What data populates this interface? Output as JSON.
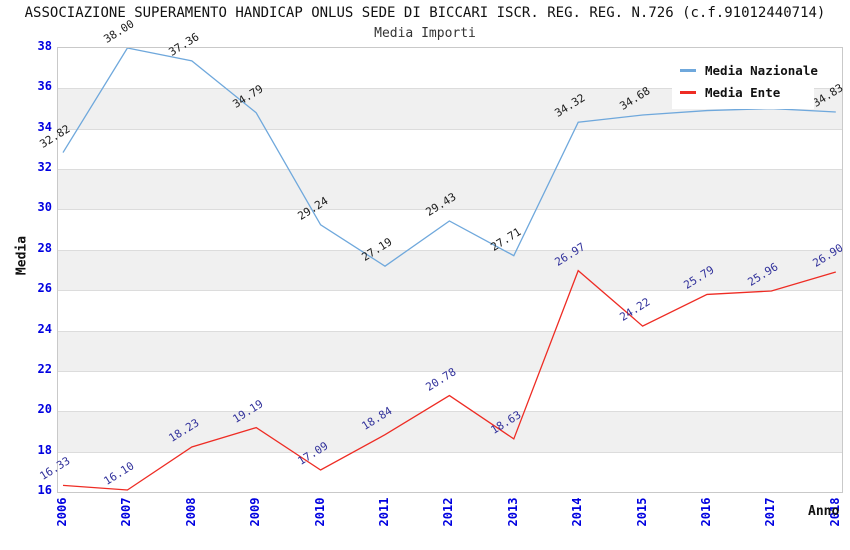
{
  "header": {
    "title": "ASSOCIAZIONE SUPERAMENTO HANDICAP ONLUS SEDE DI BICCARI ISCR. REG. REG. N.726 (c.f.91012440714)",
    "subtitle": "Media Importi"
  },
  "axes": {
    "x_title": "Anno",
    "y_title": "Media"
  },
  "legend": {
    "position": "top-right",
    "items": [
      {
        "label": "Media Nazionale",
        "color": "#6fa8dc"
      },
      {
        "label": "Media Ente",
        "color": "#ee2c24"
      }
    ]
  },
  "colors": {
    "tick_label": "#0000e0",
    "band_fill": "#f0f0f0",
    "gridline": "#dcdcdc",
    "nazionale_point_label": "#1a1a1a",
    "ente_point_label": "#31319b"
  },
  "chart_data": {
    "type": "line",
    "title": "ASSOCIAZIONE SUPERAMENTO HANDICAP ONLUS SEDE DI BICCARI ISCR. REG. REG. N.726 (c.f.91012440714)",
    "subtitle": "Media Importi",
    "xlabel": "Anno",
    "ylabel": "Media",
    "x": [
      2006,
      2007,
      2008,
      2009,
      2010,
      2011,
      2012,
      2013,
      2014,
      2015,
      2016,
      2017,
      2018
    ],
    "xtick_labels": [
      "2006",
      "2007",
      "2008",
      "2009",
      "2010",
      "2011",
      "2012",
      "2013",
      "2014",
      "2015",
      "2016",
      "2017",
      "2018"
    ],
    "ylim": [
      16,
      38
    ],
    "ytick_step": 2,
    "grid": true,
    "alternating_bands": true,
    "legend_position": "top-right",
    "series": [
      {
        "name": "Media Nazionale",
        "color": "#6fa8dc",
        "label_color": "#1a1a1a",
        "values": [
          32.82,
          38.0,
          37.36,
          34.79,
          29.24,
          27.19,
          29.43,
          27.71,
          34.32,
          34.68,
          34.9,
          35.0,
          34.83
        ],
        "labels": [
          "32.82",
          "38.00",
          "37.36",
          "34.79",
          "29.24",
          "27.19",
          "29.43",
          "27.71",
          "34.32",
          "34.68",
          "34.90",
          "35.00",
          "34.83"
        ],
        "note": "2016 and 2017 labels hidden behind legend in source; values estimated from line position"
      },
      {
        "name": "Media Ente",
        "color": "#ee2c24",
        "label_color": "#31319b",
        "values": [
          16.33,
          16.1,
          18.23,
          19.19,
          17.09,
          18.84,
          20.78,
          18.63,
          26.97,
          24.22,
          25.79,
          25.96,
          26.9
        ],
        "labels": [
          "16.33",
          "16.10",
          "18.23",
          "19.19",
          "17.09",
          "18.84",
          "20.78",
          "18.63",
          "26.97",
          "24.22",
          "25.79",
          "25.96",
          "26.90"
        ]
      }
    ]
  }
}
